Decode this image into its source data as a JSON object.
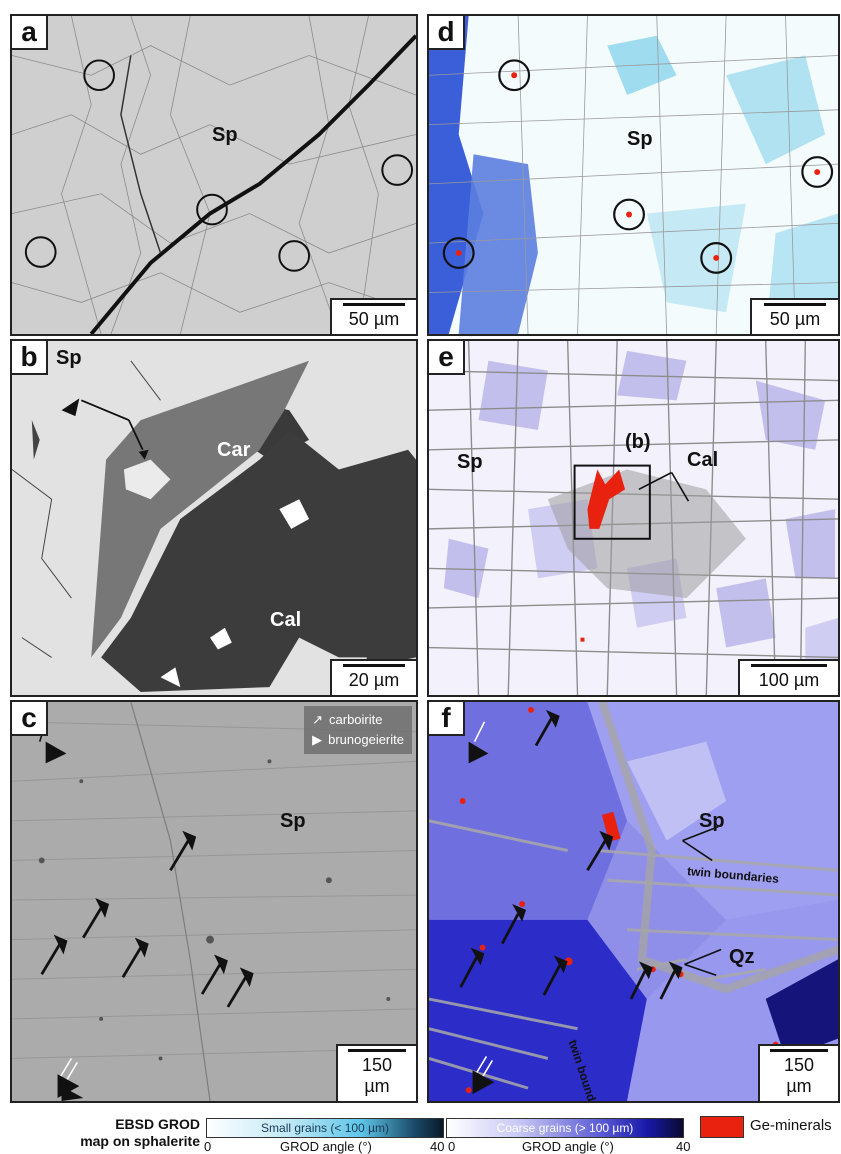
{
  "panels": {
    "a": {
      "letter": "a",
      "mineral": "Sp",
      "scale": "50 µm"
    },
    "b": {
      "letter": "b",
      "sp": "Sp",
      "car": "Car",
      "cal": "Cal",
      "scale": "20 µm"
    },
    "c": {
      "letter": "c",
      "sp": "Sp",
      "scale": "150 µm",
      "legend": {
        "carboirite": "carboirite",
        "brunogeierite": "brunogeierite"
      }
    },
    "d": {
      "letter": "d",
      "mineral": "Sp",
      "scale": "50 µm"
    },
    "e": {
      "letter": "e",
      "sp": "Sp",
      "cal": "Cal",
      "inset": "(b)",
      "scale": "100 µm"
    },
    "f": {
      "letter": "f",
      "sp": "Sp",
      "qz": "Qz",
      "twin1": "twin boundaries",
      "twin2": "twin boundaries",
      "scale": "150 µm"
    }
  },
  "footer": {
    "title_line1": "EBSD GROD",
    "title_line2": "map on sphalerite",
    "small_bar_label": "Small grains (< 100 µm)",
    "coarse_bar_label": "Coarse grains (> 100 µm)",
    "small_min": "0",
    "small_axis": "GROD angle (°)",
    "small_max": "40",
    "coarse_min": "0",
    "coarse_axis": "GROD angle (°)",
    "coarse_max": "40",
    "ge_label": "Ge-minerals"
  },
  "colors": {
    "small_start": "#ffffff",
    "small_mid": "#5fc6e8",
    "small_end": "#0b1a28",
    "coarse_start": "#ffffff",
    "coarse_mid": "#5b5bd6",
    "coarse_end": "#0a0a30",
    "ge": "#e8220f"
  }
}
